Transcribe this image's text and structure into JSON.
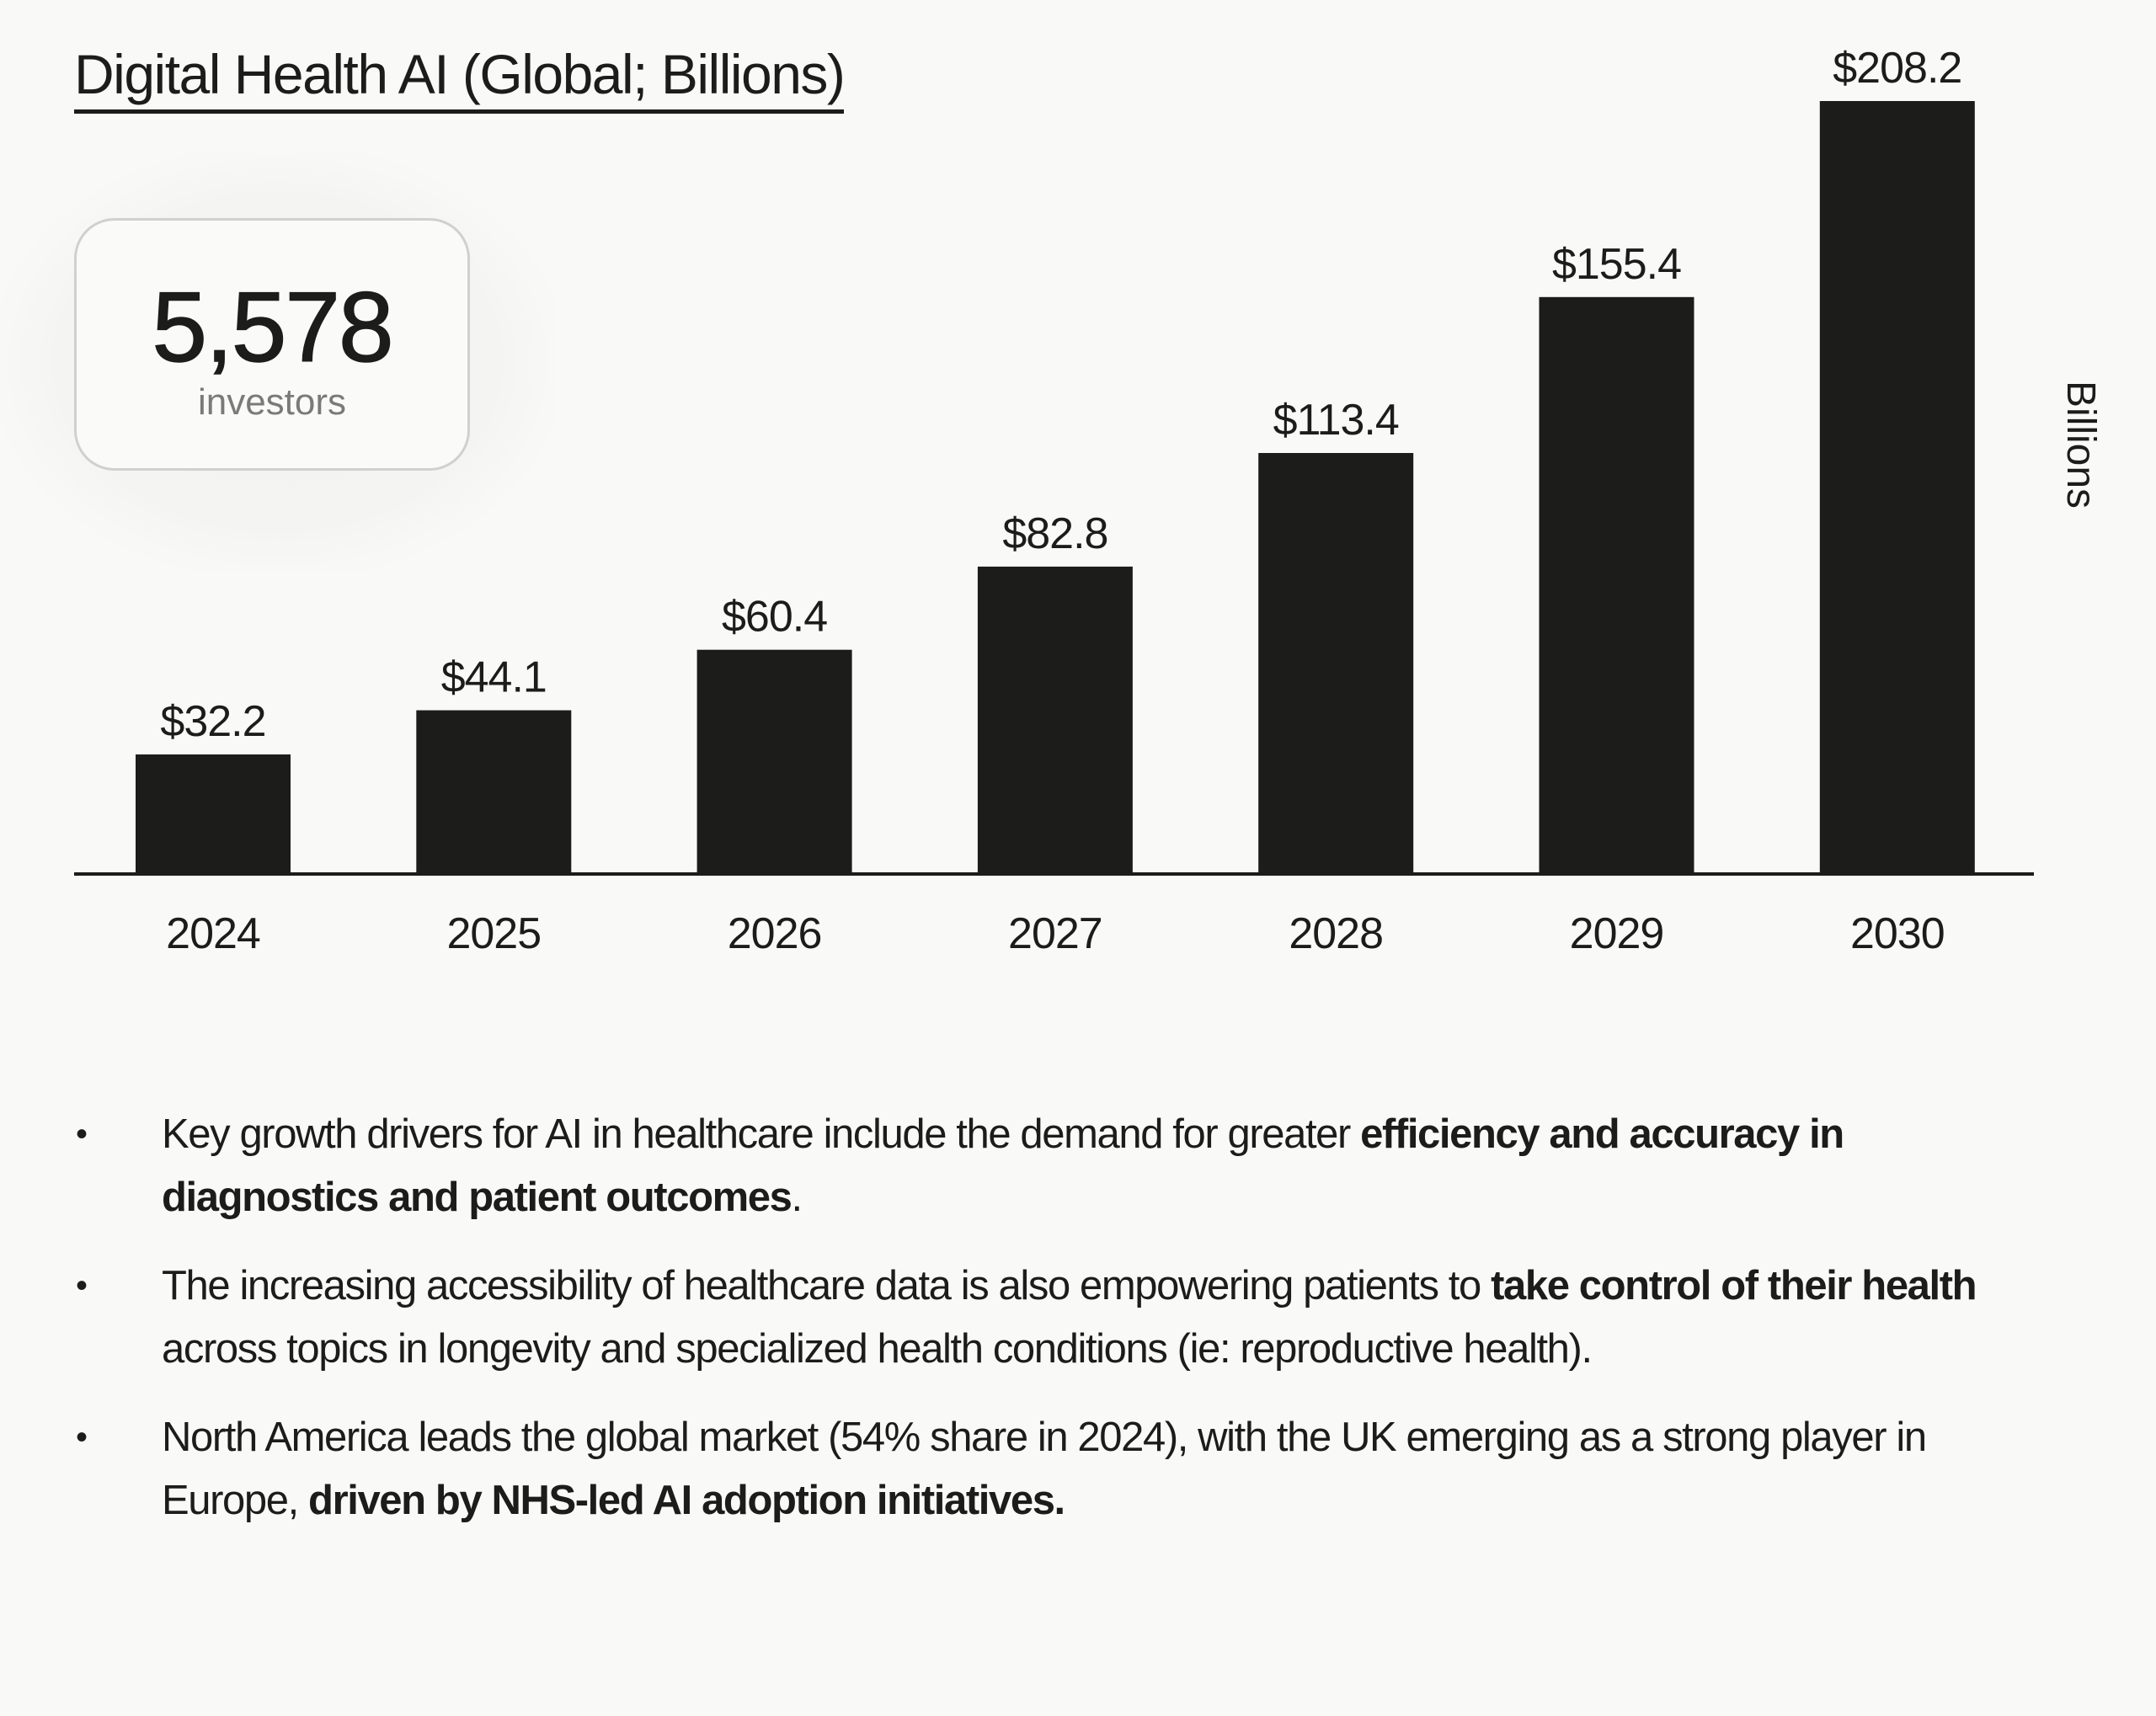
{
  "title": "Digital Health AI (Global; Billions)",
  "stat_card": {
    "value": "5,578",
    "label": "investors"
  },
  "chart_data": {
    "type": "bar",
    "title": "Digital Health AI (Global; Billions)",
    "xlabel": "",
    "ylabel": "Billions",
    "ylabel_position": "right",
    "categories": [
      "2024",
      "2025",
      "2026",
      "2027",
      "2028",
      "2029",
      "2030"
    ],
    "values": [
      32.2,
      44.1,
      60.4,
      82.8,
      113.4,
      155.4,
      208.2
    ],
    "data_labels": [
      "$32.2",
      "$44.1",
      "$60.4",
      "$82.8",
      "$113.4",
      "$155.4",
      "$208.2"
    ],
    "ylim": [
      0,
      208.2
    ],
    "grid": false,
    "bar_color": "#1c1c1a"
  },
  "bullets": [
    {
      "segments": [
        {
          "text": "Key growth drivers for AI in healthcare include the demand for greater ",
          "bold": false
        },
        {
          "text": "efficiency and accuracy in diagnostics and patient outcomes",
          "bold": true
        },
        {
          "text": ".",
          "bold": false
        }
      ]
    },
    {
      "segments": [
        {
          "text": "The increasing accessibility of healthcare data is also empowering patients to ",
          "bold": false
        },
        {
          "text": "take control of their health",
          "bold": true
        },
        {
          "text": " across topics in longevity and specialized health conditions (ie: reproductive health).",
          "bold": false
        }
      ]
    },
    {
      "segments": [
        {
          "text": "North America leads the global market (54% share in 2024), with the UK emerging as a strong player in Europe, ",
          "bold": false
        },
        {
          "text": "driven by NHS-led AI adoption initiatives.",
          "bold": true
        }
      ]
    }
  ],
  "bullet_glyph": "•"
}
